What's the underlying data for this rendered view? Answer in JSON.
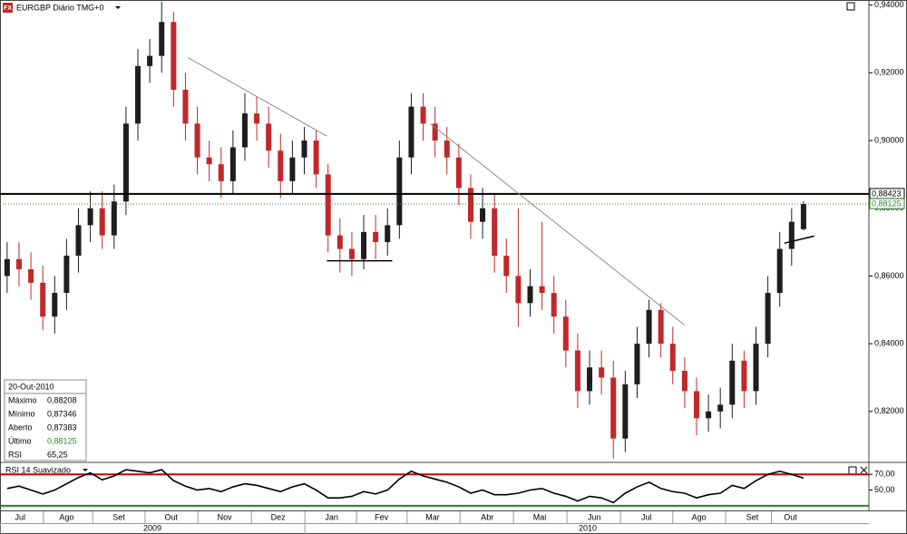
{
  "chart_data": [
    {
      "type": "candlestick",
      "title": "EURGBP Diário TMG+0",
      "badge": "FX",
      "up_color": "#1e1e1e",
      "down_color": "#c0282a",
      "open": [
        0.86,
        0.865,
        0.862,
        0.858,
        0.848,
        0.855,
        0.866,
        0.875,
        0.88,
        0.872,
        0.882,
        0.905,
        0.922,
        0.925,
        0.935,
        0.915,
        0.905,
        0.895,
        0.893,
        0.888,
        0.898,
        0.908,
        0.905,
        0.897,
        0.888,
        0.895,
        0.9,
        0.89,
        0.872,
        0.868,
        0.865,
        0.873,
        0.87,
        0.875,
        0.895,
        0.91,
        0.905,
        0.9,
        0.895,
        0.886,
        0.876,
        0.88,
        0.866,
        0.86,
        0.852,
        0.857,
        0.855,
        0.848,
        0.838,
        0.826,
        0.833,
        0.83,
        0.812,
        0.828,
        0.84,
        0.85,
        0.84,
        0.832,
        0.826,
        0.818,
        0.82,
        0.822,
        0.835,
        0.826,
        0.84,
        0.855,
        0.868,
        0.87383
      ],
      "high": [
        0.87,
        0.87,
        0.867,
        0.863,
        0.86,
        0.871,
        0.88,
        0.885,
        0.885,
        0.887,
        0.91,
        0.927,
        0.93,
        0.941,
        0.938,
        0.92,
        0.91,
        0.9,
        0.898,
        0.903,
        0.914,
        0.913,
        0.91,
        0.902,
        0.9,
        0.904,
        0.903,
        0.893,
        0.877,
        0.873,
        0.878,
        0.878,
        0.88,
        0.9,
        0.914,
        0.914,
        0.91,
        0.904,
        0.899,
        0.89,
        0.886,
        0.884,
        0.871,
        0.88,
        0.862,
        0.876,
        0.86,
        0.853,
        0.843,
        0.838,
        0.838,
        0.835,
        0.832,
        0.845,
        0.853,
        0.852,
        0.845,
        0.836,
        0.83,
        0.825,
        0.827,
        0.84,
        0.838,
        0.845,
        0.86,
        0.873,
        0.88,
        0.88208
      ],
      "low": [
        0.855,
        0.857,
        0.853,
        0.844,
        0.843,
        0.85,
        0.861,
        0.87,
        0.868,
        0.868,
        0.878,
        0.9,
        0.917,
        0.92,
        0.91,
        0.9,
        0.89,
        0.888,
        0.883,
        0.884,
        0.894,
        0.9,
        0.892,
        0.883,
        0.884,
        0.89,
        0.886,
        0.867,
        0.861,
        0.86,
        0.862,
        0.865,
        0.866,
        0.871,
        0.89,
        0.9,
        0.895,
        0.89,
        0.881,
        0.871,
        0.871,
        0.861,
        0.855,
        0.845,
        0.848,
        0.85,
        0.843,
        0.833,
        0.821,
        0.822,
        0.825,
        0.806,
        0.808,
        0.824,
        0.836,
        0.836,
        0.828,
        0.821,
        0.813,
        0.814,
        0.815,
        0.818,
        0.821,
        0.822,
        0.836,
        0.851,
        0.863,
        0.87346
      ],
      "close": [
        0.865,
        0.862,
        0.858,
        0.848,
        0.855,
        0.866,
        0.875,
        0.88,
        0.872,
        0.882,
        0.905,
        0.922,
        0.925,
        0.935,
        0.915,
        0.905,
        0.895,
        0.893,
        0.888,
        0.898,
        0.908,
        0.905,
        0.897,
        0.888,
        0.895,
        0.9,
        0.89,
        0.872,
        0.868,
        0.865,
        0.873,
        0.87,
        0.875,
        0.895,
        0.91,
        0.905,
        0.9,
        0.895,
        0.886,
        0.876,
        0.88,
        0.866,
        0.86,
        0.852,
        0.857,
        0.855,
        0.848,
        0.838,
        0.826,
        0.833,
        0.83,
        0.812,
        0.828,
        0.84,
        0.85,
        0.84,
        0.832,
        0.826,
        0.818,
        0.82,
        0.822,
        0.835,
        0.826,
        0.84,
        0.855,
        0.868,
        0.876,
        0.88125
      ],
      "xlim": [
        -0.6,
        72.5
      ],
      "ylim": [
        0.8055,
        0.9415
      ],
      "yticks": [
        {
          "value": 0.82,
          "label": "0,82000"
        },
        {
          "value": 0.84,
          "label": "0,84000"
        },
        {
          "value": 0.86,
          "label": "0,86000"
        },
        {
          "value": 0.88,
          "label": "0,88000"
        },
        {
          "value": 0.9,
          "label": "0,90000"
        },
        {
          "value": 0.92,
          "label": "0,92000"
        },
        {
          "value": 0.94,
          "label": "0,94000"
        }
      ],
      "xticks": [
        {
          "value": 1.1,
          "label": "Jul"
        },
        {
          "value": 5.0,
          "label": "Ago"
        },
        {
          "value": 9.4,
          "label": "Set"
        },
        {
          "value": 13.8,
          "label": "Out"
        },
        {
          "value": 18.3,
          "label": "Nov"
        },
        {
          "value": 22.8,
          "label": "Dez"
        },
        {
          "value": 27.3,
          "label": "Jan"
        },
        {
          "value": 31.5,
          "label": "Fev"
        },
        {
          "value": 35.8,
          "label": "Mar"
        },
        {
          "value": 40.4,
          "label": "Abr"
        },
        {
          "value": 44.8,
          "label": "Mai"
        },
        {
          "value": 49.4,
          "label": "Jun"
        },
        {
          "value": 53.8,
          "label": "Jul"
        },
        {
          "value": 58.2,
          "label": "Ago"
        },
        {
          "value": 62.7,
          "label": "Set"
        },
        {
          "value": 65.9,
          "label": "Out"
        }
      ],
      "years": [
        {
          "label": "2009",
          "range": [
            -0.6,
            25.04
          ]
        },
        {
          "label": "2010",
          "range": [
            25.04,
            72.65
          ]
        }
      ],
      "hlines": [
        {
          "value": 0.88423,
          "label": "0,88423",
          "style": "solid",
          "color": "#000000"
        },
        {
          "value": 0.88125,
          "label": "0,88125",
          "style": "dotted",
          "color": "#2e8b2e"
        }
      ],
      "trendlines": [
        {
          "x": [
            15.2,
            26.9
          ],
          "y": [
            0.9245,
            0.9013
          ],
          "color": "#8a8a8a"
        },
        {
          "x": [
            26.9,
            32.4
          ],
          "y": [
            0.8645,
            0.8645
          ],
          "color": "#000000"
        },
        {
          "x": [
            35.6,
            57.0
          ],
          "y": [
            0.905,
            0.8455
          ],
          "color": "#8a8a8a"
        },
        {
          "x": [
            65.4,
            67.9
          ],
          "y": [
            0.8697,
            0.8718
          ],
          "color": "#000000"
        }
      ],
      "info": {
        "date": "20-Out-2010",
        "rows": [
          [
            "Máximo",
            "0,88208"
          ],
          [
            "Mínimo",
            "0,87346"
          ],
          [
            "Aberto",
            "0,87383"
          ],
          [
            "Último",
            "0,88125"
          ],
          [
            "RSI",
            "65,25"
          ]
        ]
      }
    },
    {
      "type": "line",
      "title": "RSI 14 Suavizado",
      "color": "#000000",
      "values": [
        52,
        55,
        50,
        45,
        50,
        58,
        66,
        72,
        63,
        68,
        76,
        74,
        72,
        76,
        62,
        55,
        50,
        52,
        48,
        54,
        58,
        56,
        52,
        48,
        54,
        58,
        50,
        40,
        40,
        42,
        48,
        45,
        50,
        64,
        74,
        68,
        64,
        60,
        54,
        46,
        50,
        44,
        44,
        46,
        50,
        52,
        46,
        42,
        36,
        42,
        40,
        34,
        46,
        54,
        60,
        52,
        48,
        46,
        40,
        44,
        46,
        56,
        52,
        62,
        70,
        74,
        70,
        65.25
      ],
      "ylim": [
        24,
        83
      ],
      "yticks": [
        {
          "value": 50,
          "label": "50,00"
        },
        {
          "value": 70,
          "label": "70,00"
        }
      ],
      "levels": [
        {
          "value": 70,
          "color": "#cc0000"
        },
        {
          "value": 30,
          "color": "#1a8a1a"
        }
      ]
    }
  ]
}
